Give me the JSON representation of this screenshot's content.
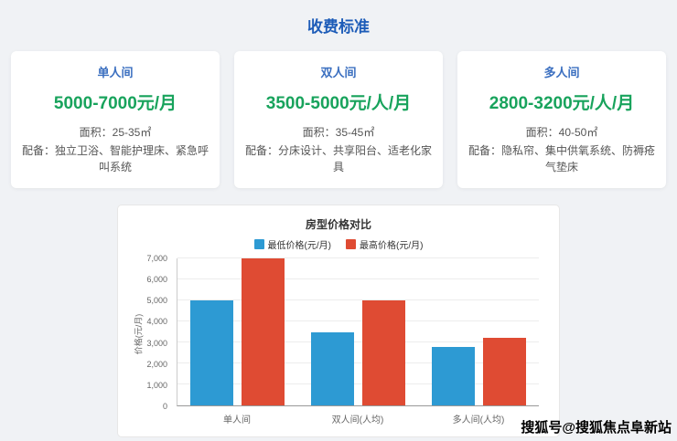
{
  "page": {
    "title": "收费标准"
  },
  "cards": [
    {
      "label": "单人间",
      "price": "5000-7000元/月",
      "area": "面积：25-35㎡",
      "equip": "配备：独立卫浴、智能护理床、紧急呼叫系统"
    },
    {
      "label": "双人间",
      "price": "3500-5000元/人/月",
      "area": "面积：35-45㎡",
      "equip": "配备：分床设计、共享阳台、适老化家具"
    },
    {
      "label": "多人间",
      "price": "2800-3200元/人/月",
      "area": "面积：40-50㎡",
      "equip": "配备：隐私帘、集中供氧系统、防褥疮气垫床"
    }
  ],
  "chart_data": {
    "type": "bar",
    "title": "房型价格对比",
    "categories": [
      "单人间",
      "双人间(人均)",
      "多人间(人均)"
    ],
    "series": [
      {
        "name": "最低价格(元/月)",
        "color": "#2d9ad3",
        "values": [
          5000,
          3500,
          2800
        ]
      },
      {
        "name": "最高价格(元/月)",
        "color": "#df4b33",
        "values": [
          7000,
          5000,
          3200
        ]
      }
    ],
    "ylabel": "价格(元/月)",
    "ylim": [
      0,
      7000
    ],
    "ytick_step": 1000,
    "legend_position": "top",
    "grid": true
  },
  "watermark": "搜狐号@搜狐焦点阜新站"
}
